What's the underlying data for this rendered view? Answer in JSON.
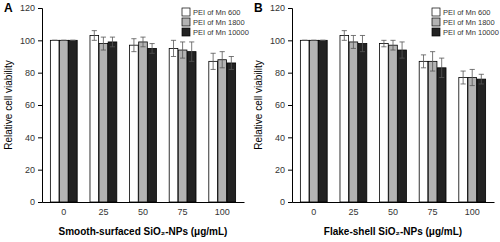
{
  "chart_data": [
    {
      "type": "bar",
      "title": "A",
      "x_label": "Smooth-surfaced SiO₂-NPs (μg/mL)",
      "y_label": "Relative cell viability",
      "categories": [
        "0",
        "25",
        "50",
        "75",
        "100"
      ],
      "series": [
        {
          "name": "PEI of Mn 600",
          "color": "#ffffff",
          "values": [
            100,
            103,
            97,
            95,
            87
          ],
          "errors": [
            0,
            3,
            4,
            5,
            5
          ]
        },
        {
          "name": "PEI of Mn 1800",
          "color": "#b3b3b3",
          "values": [
            100,
            98,
            99,
            94,
            88
          ],
          "errors": [
            0,
            4,
            3,
            5,
            5
          ]
        },
        {
          "name": "PEI of Mn 10000",
          "color": "#222222",
          "values": [
            100,
            99,
            95,
            93,
            86
          ],
          "errors": [
            0,
            3,
            3,
            6,
            4
          ]
        }
      ],
      "ylim": [
        0,
        120
      ],
      "yticks": [
        0,
        20,
        40,
        60,
        80,
        100,
        120
      ],
      "grid": false,
      "legend": "top-right"
    },
    {
      "type": "bar",
      "title": "B",
      "x_label": "Flake-shell SiO₂-NPs (μg/mL)",
      "y_label": "Relative cell viability",
      "categories": [
        "0",
        "25",
        "50",
        "75",
        "100"
      ],
      "series": [
        {
          "name": "PEI of Mn 600",
          "color": "#ffffff",
          "values": [
            100,
            103,
            98,
            87,
            77
          ],
          "errors": [
            0,
            3,
            2,
            4,
            4
          ]
        },
        {
          "name": "PEI of Mn 1800",
          "color": "#b3b3b3",
          "values": [
            100,
            99,
            97,
            87,
            77
          ],
          "errors": [
            0,
            4,
            3,
            6,
            5
          ]
        },
        {
          "name": "PEI of Mn 10000",
          "color": "#222222",
          "values": [
            100,
            98,
            94,
            83,
            76
          ],
          "errors": [
            0,
            5,
            5,
            6,
            3
          ]
        }
      ],
      "ylim": [
        0,
        120
      ],
      "yticks": [
        0,
        20,
        40,
        60,
        80,
        100,
        120
      ],
      "grid": false,
      "legend": "top-right"
    }
  ]
}
